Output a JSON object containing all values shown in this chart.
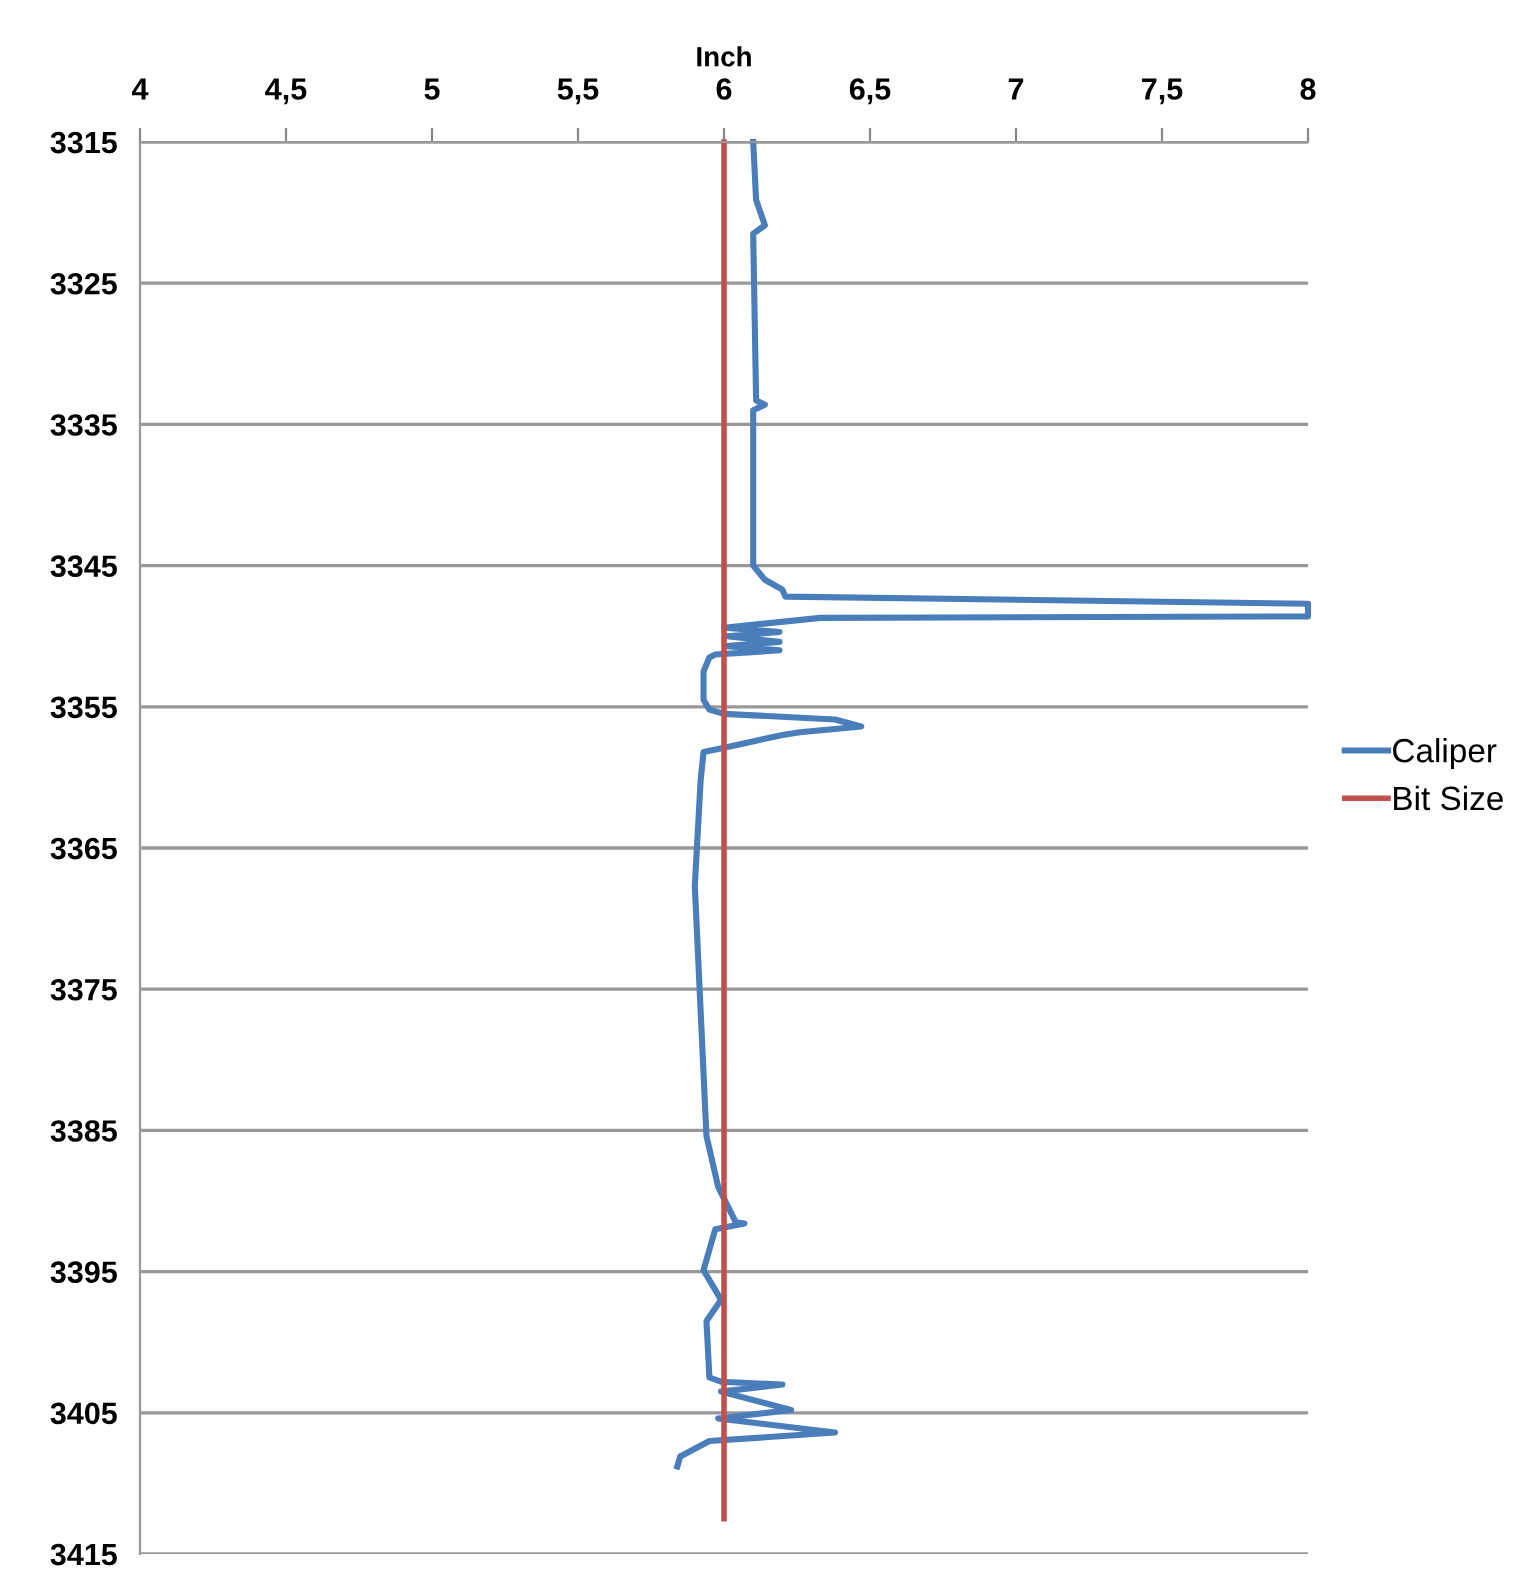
{
  "chart_data": {
    "type": "line",
    "xlabel": "Inch",
    "xlim": [
      4,
      8
    ],
    "ylim": [
      3415,
      3315
    ],
    "xticks": [
      4,
      {
        "value": 4.5,
        "label": "4,5"
      },
      5,
      {
        "value": 5.5,
        "label": "5,5"
      },
      6,
      {
        "value": 6.5,
        "label": "6,5"
      },
      7,
      {
        "value": 7.5,
        "label": "7,5"
      },
      8
    ],
    "yticks": [
      3315,
      3325,
      3335,
      3345,
      3355,
      3365,
      3375,
      3385,
      3395,
      3405,
      3415
    ],
    "grid": "y",
    "legend": "right",
    "marker": "none",
    "line_style": "solid",
    "series": [
      {
        "name": "Caliper",
        "color": "#4a7ebb",
        "x": [
          6.1,
          6.11,
          6.14,
          6.1,
          6.11,
          6.14,
          6.1,
          6.1,
          6.14,
          6.2,
          6.21,
          8,
          8,
          6.33,
          6.0,
          6.19,
          6.01,
          6.19,
          6.01,
          6.19,
          5.97,
          5.95,
          5.93,
          5.93,
          5.95,
          6.0,
          6.38,
          6.47,
          6.26,
          6.2,
          6.11,
          6.0,
          5.93,
          5.92,
          5.9,
          5.94,
          5.98,
          6.04,
          6.07,
          5.97,
          5.93,
          5.99,
          5.94,
          5.95,
          5.99,
          6.2,
          5.99,
          6.23,
          5.98,
          6.38,
          5.95,
          5.85,
          5.84
        ],
        "values": [
          3315,
          3319.1,
          3320.9,
          3321.5,
          3333.3,
          3333.6,
          3334,
          3345,
          3346,
          3346.7,
          3347.2,
          3347.7,
          3348.6,
          3348.7,
          3349.4,
          3349.7,
          3350,
          3350.4,
          3350.7,
          3351,
          3351.3,
          3351.5,
          3352.5,
          3354.5,
          3355.2,
          3355.5,
          3355.9,
          3356.4,
          3356.8,
          3357,
          3357.4,
          3357.9,
          3358.2,
          3360.2,
          3367.7,
          3385.4,
          3389,
          3391.5,
          3391.6,
          3392,
          3394.9,
          3397,
          3398.5,
          3402.5,
          3402.8,
          3403,
          3403.5,
          3404.8,
          3405.4,
          3406.4,
          3407,
          3408.1,
          3408.8
        ]
      },
      {
        "name": "Bit Size",
        "color": "#c0504d",
        "x": [
          6,
          6
        ],
        "values": [
          3315,
          3412.5
        ]
      }
    ]
  }
}
